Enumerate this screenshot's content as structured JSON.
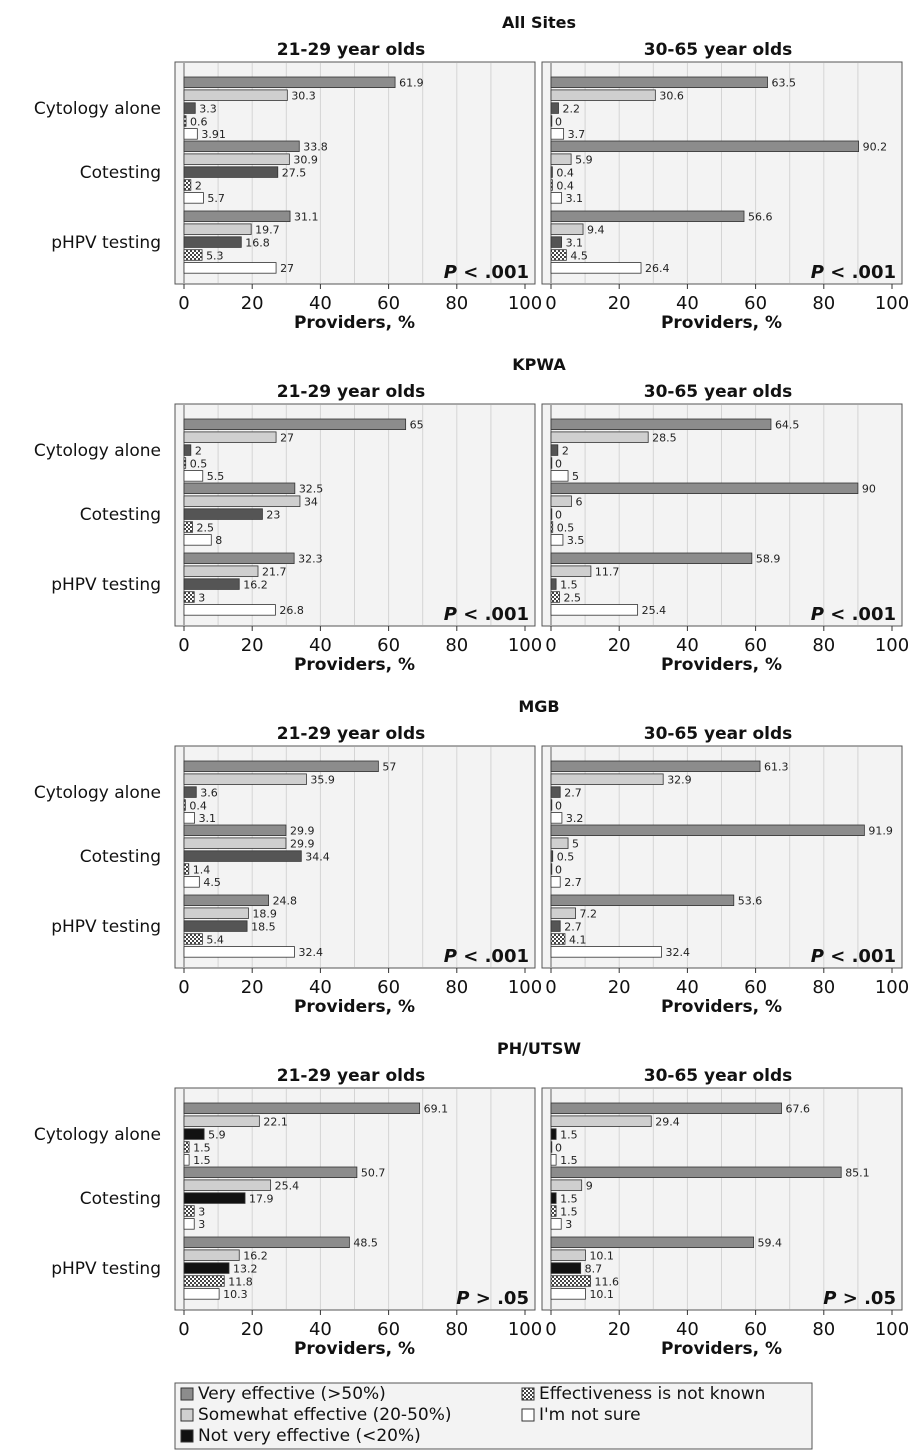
{
  "chart_data": {
    "type": "bar",
    "orientation": "horizontal",
    "categories": [
      "Cytology alone",
      "Cotesting",
      "pHPV testing"
    ],
    "xlabel": "Providers, %",
    "xlim": [
      0,
      100
    ],
    "xticks": [
      0,
      20,
      40,
      60,
      80,
      100
    ],
    "grid": true,
    "legend_position": "bottom",
    "legend": [
      {
        "key": "very",
        "label": "Very effective (>50%)",
        "color": "#8c8c8c",
        "pattern": "solid"
      },
      {
        "key": "somewhat",
        "label": "Somewhat effective (20-50%)",
        "color": "#cfcfcf",
        "pattern": "solid"
      },
      {
        "key": "not",
        "label": "Not very effective (<20%)",
        "color": "#111111",
        "pattern": "solid"
      },
      {
        "key": "unknown",
        "label": "Effectiveness is not known",
        "color": "#555555",
        "pattern": "checker"
      },
      {
        "key": "unsure",
        "label": "I'm not sure",
        "color": "#ffffff",
        "pattern": "solid"
      }
    ],
    "sites": [
      {
        "title": "All Sites",
        "not_color": "#555555",
        "panels": [
          {
            "title": "21-29 year olds",
            "pvalue": "< .001",
            "groups": [
              {
                "category": "Cytology alone",
                "values": [
                  61.9,
                  30.3,
                  3.3,
                  0.6,
                  3.91
                ]
              },
              {
                "category": "Cotesting",
                "values": [
                  33.8,
                  30.9,
                  27.5,
                  2.0,
                  5.7
                ]
              },
              {
                "category": "pHPV testing",
                "values": [
                  31.1,
                  19.7,
                  16.8,
                  5.3,
                  27.0
                ]
              }
            ]
          },
          {
            "title": "30-65 year olds",
            "pvalue": "< .001",
            "groups": [
              {
                "category": "Cytology alone",
                "values": [
                  63.5,
                  30.6,
                  2.2,
                  0.0,
                  3.7
                ]
              },
              {
                "category": "Cotesting",
                "values": [
                  90.2,
                  5.9,
                  0.4,
                  0.4,
                  3.1
                ]
              },
              {
                "category": "pHPV testing",
                "values": [
                  56.6,
                  9.4,
                  3.1,
                  4.5,
                  26.4
                ]
              }
            ]
          }
        ]
      },
      {
        "title": "KPWA",
        "not_color": "#555555",
        "panels": [
          {
            "title": "21-29 year olds",
            "pvalue": "< .001",
            "groups": [
              {
                "category": "Cytology alone",
                "values": [
                  65.0,
                  27.0,
                  2.0,
                  0.5,
                  5.5
                ]
              },
              {
                "category": "Cotesting",
                "values": [
                  32.5,
                  34.0,
                  23.0,
                  2.5,
                  8.0
                ]
              },
              {
                "category": "pHPV testing",
                "values": [
                  32.3,
                  21.7,
                  16.2,
                  3.0,
                  26.8
                ]
              }
            ]
          },
          {
            "title": "30-65 year olds",
            "pvalue": "< .001",
            "groups": [
              {
                "category": "Cytology alone",
                "values": [
                  64.5,
                  28.5,
                  2.0,
                  0.0,
                  5.0
                ]
              },
              {
                "category": "Cotesting",
                "values": [
                  90.0,
                  6.0,
                  0.0,
                  0.5,
                  3.5
                ]
              },
              {
                "category": "pHPV testing",
                "values": [
                  58.9,
                  11.7,
                  1.5,
                  2.5,
                  25.4
                ]
              }
            ]
          }
        ]
      },
      {
        "title": "MGB",
        "not_color": "#555555",
        "panels": [
          {
            "title": "21-29 year olds",
            "pvalue": "< .001",
            "groups": [
              {
                "category": "Cytology alone",
                "values": [
                  57.0,
                  35.9,
                  3.6,
                  0.4,
                  3.1
                ]
              },
              {
                "category": "Cotesting",
                "values": [
                  29.9,
                  29.9,
                  34.4,
                  1.4,
                  4.5
                ]
              },
              {
                "category": "pHPV testing",
                "values": [
                  24.8,
                  18.9,
                  18.5,
                  5.4,
                  32.4
                ]
              }
            ]
          },
          {
            "title": "30-65 year olds",
            "pvalue": "< .001",
            "groups": [
              {
                "category": "Cytology alone",
                "values": [
                  61.3,
                  32.9,
                  2.7,
                  0.0,
                  3.2
                ]
              },
              {
                "category": "Cotesting",
                "values": [
                  91.9,
                  5.0,
                  0.5,
                  0.0,
                  2.7
                ]
              },
              {
                "category": "pHPV testing",
                "values": [
                  53.6,
                  7.2,
                  2.7,
                  4.1,
                  32.4
                ]
              }
            ]
          }
        ]
      },
      {
        "title": "PH/UTSW",
        "not_color": "#111111",
        "panels": [
          {
            "title": "21-29 year olds",
            "pvalue": "> .05",
            "groups": [
              {
                "category": "Cytology alone",
                "values": [
                  69.1,
                  22.1,
                  5.9,
                  1.5,
                  1.5
                ]
              },
              {
                "category": "Cotesting",
                "values": [
                  50.7,
                  25.4,
                  17.9,
                  3.0,
                  3.0
                ]
              },
              {
                "category": "pHPV testing",
                "values": [
                  48.5,
                  16.2,
                  13.2,
                  11.8,
                  10.3
                ]
              }
            ]
          },
          {
            "title": "30-65 year olds",
            "pvalue": "> .05",
            "groups": [
              {
                "category": "Cytology alone",
                "values": [
                  67.6,
                  29.4,
                  1.5,
                  0.0,
                  1.5
                ]
              },
              {
                "category": "Cotesting",
                "values": [
                  85.1,
                  9.0,
                  1.5,
                  1.5,
                  3.0
                ]
              },
              {
                "category": "pHPV testing",
                "values": [
                  59.4,
                  10.1,
                  8.7,
                  11.6,
                  10.1
                ]
              }
            ]
          }
        ]
      }
    ]
  }
}
